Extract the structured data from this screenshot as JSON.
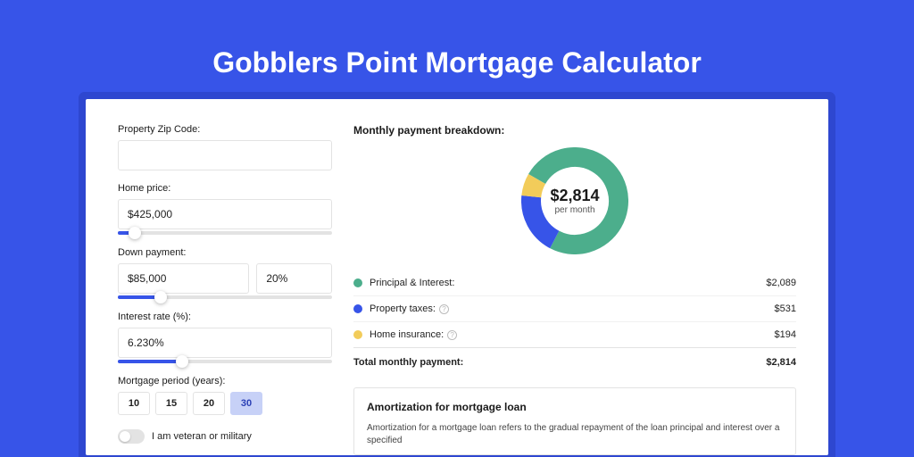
{
  "page": {
    "title": "Gobblers Point Mortgage Calculator",
    "background_color": "#3754e8",
    "shadow_color": "#2e47d0"
  },
  "form": {
    "zip": {
      "label": "Property Zip Code:",
      "value": ""
    },
    "home_price": {
      "label": "Home price:",
      "value": "$425,000",
      "slider_pct": 8
    },
    "down_payment": {
      "label": "Down payment:",
      "amount": "$85,000",
      "percent": "20%",
      "slider_pct": 20
    },
    "interest_rate": {
      "label": "Interest rate (%):",
      "value": "6.230%",
      "slider_pct": 30
    },
    "mortgage_period": {
      "label": "Mortgage period (years):",
      "options": [
        "10",
        "15",
        "20",
        "30"
      ],
      "selected": "30"
    },
    "veteran": {
      "label": "I am veteran or military",
      "checked": false
    }
  },
  "breakdown": {
    "title": "Monthly payment breakdown:",
    "center_value": "$2,814",
    "center_sub": "per month",
    "donut": {
      "size": 120,
      "stroke_width": 22,
      "background_color": "#ffffff",
      "segments": [
        {
          "color": "#4cae8c",
          "pct": 74.2
        },
        {
          "color": "#3754e8",
          "pct": 18.9
        },
        {
          "color": "#f2cc5a",
          "pct": 6.9
        }
      ]
    },
    "rows": [
      {
        "label": "Principal & Interest:",
        "amount": "$2,089",
        "color": "#4cae8c",
        "info": false
      },
      {
        "label": "Property taxes:",
        "amount": "$531",
        "color": "#3754e8",
        "info": true
      },
      {
        "label": "Home insurance:",
        "amount": "$194",
        "color": "#f2cc5a",
        "info": true
      }
    ],
    "total": {
      "label": "Total monthly payment:",
      "amount": "$2,814"
    }
  },
  "amortization": {
    "title": "Amortization for mortgage loan",
    "text": "Amortization for a mortgage loan refers to the gradual repayment of the loan principal and interest over a specified"
  }
}
